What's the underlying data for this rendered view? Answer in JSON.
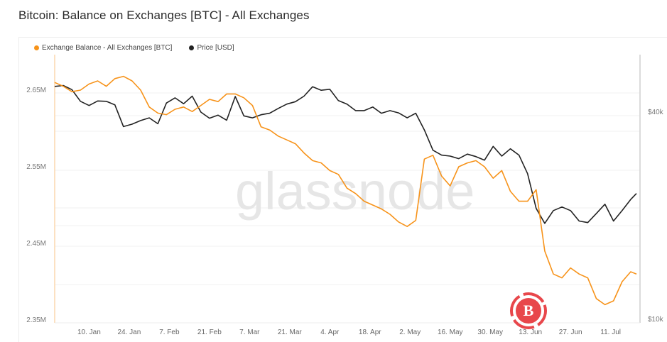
{
  "header": {
    "title": "Bitcoin: Balance on Exchanges [BTC] - All Exchanges"
  },
  "legend": [
    {
      "label": "Exchange Balance - All Exchanges [BTC]",
      "color": "#f7931a"
    },
    {
      "label": "Price [USD]",
      "color": "#222222"
    }
  ],
  "watermark": "glassnode",
  "colors": {
    "balance": "#f7931a",
    "price": "#222222",
    "grid": "#f0f0f0",
    "badge": "#e8474b"
  },
  "chart_data": {
    "type": "line",
    "title": "Bitcoin: Balance on Exchanges [BTC] - All Exchanges",
    "xlabel": "",
    "ylabel_left": "Exchange Balance [BTC]",
    "ylabel_right": "Price [USD]",
    "x_tick_labels": [
      "10. Jan",
      "24. Jan",
      "7. Feb",
      "21. Feb",
      "7. Mar",
      "21. Mar",
      "4. Apr",
      "18. Apr",
      "2. May",
      "16. May",
      "30. May",
      "13. Jun",
      "27. Jun",
      "11. Jul"
    ],
    "y_left_tick_labels": [
      "2.65M",
      "2.55M",
      "2.45M",
      "2.35M"
    ],
    "y_left_range": [
      2.35,
      2.68
    ],
    "y_right_tick_labels": [
      "$40k",
      "$10k"
    ],
    "y_right_scale": "log",
    "grid": true,
    "legend_position": "top-left",
    "x_range": [
      "2021-12-29",
      "2022-07-21"
    ],
    "series": [
      {
        "name": "Exchange Balance - All Exchanges [BTC]",
        "axis": "left",
        "color": "#f7931a",
        "x": [
          "2021-12-29",
          "2022-01-01",
          "2022-01-04",
          "2022-01-07",
          "2022-01-10",
          "2022-01-13",
          "2022-01-16",
          "2022-01-19",
          "2022-01-22",
          "2022-01-25",
          "2022-01-28",
          "2022-01-31",
          "2022-02-03",
          "2022-02-06",
          "2022-02-09",
          "2022-02-12",
          "2022-02-15",
          "2022-02-18",
          "2022-02-21",
          "2022-02-24",
          "2022-02-27",
          "2022-03-02",
          "2022-03-05",
          "2022-03-08",
          "2022-03-11",
          "2022-03-14",
          "2022-03-17",
          "2022-03-20",
          "2022-03-23",
          "2022-03-26",
          "2022-03-29",
          "2022-04-01",
          "2022-04-04",
          "2022-04-07",
          "2022-04-10",
          "2022-04-13",
          "2022-04-16",
          "2022-04-19",
          "2022-04-22",
          "2022-04-25",
          "2022-04-28",
          "2022-05-01",
          "2022-05-04",
          "2022-05-07",
          "2022-05-10",
          "2022-05-13",
          "2022-05-16",
          "2022-05-19",
          "2022-05-22",
          "2022-05-25",
          "2022-05-28",
          "2022-05-31",
          "2022-06-03",
          "2022-06-06",
          "2022-06-09",
          "2022-06-12",
          "2022-06-15",
          "2022-06-18",
          "2022-06-21",
          "2022-06-24",
          "2022-06-27",
          "2022-06-30",
          "2022-07-03",
          "2022-07-06",
          "2022-07-09",
          "2022-07-12",
          "2022-07-15",
          "2022-07-18",
          "2022-07-20"
        ],
        "values": [
          2.66,
          2.655,
          2.648,
          2.65,
          2.658,
          2.662,
          2.655,
          2.665,
          2.668,
          2.662,
          2.65,
          2.628,
          2.62,
          2.618,
          2.625,
          2.628,
          2.622,
          2.63,
          2.638,
          2.635,
          2.645,
          2.645,
          2.64,
          2.63,
          2.602,
          2.598,
          2.59,
          2.585,
          2.58,
          2.568,
          2.558,
          2.555,
          2.545,
          2.54,
          2.522,
          2.515,
          2.505,
          2.5,
          2.495,
          2.488,
          2.478,
          2.472,
          2.48,
          2.56,
          2.565,
          2.538,
          2.525,
          2.55,
          2.555,
          2.558,
          2.55,
          2.535,
          2.545,
          2.518,
          2.505,
          2.505,
          2.52,
          2.44,
          2.41,
          2.405,
          2.418,
          2.41,
          2.405,
          2.378,
          2.37,
          2.375,
          2.4,
          2.413,
          2.41
        ]
      },
      {
        "name": "Price [USD]",
        "axis": "right",
        "color": "#222222",
        "x": [
          "2021-12-29",
          "2022-01-01",
          "2022-01-04",
          "2022-01-07",
          "2022-01-10",
          "2022-01-13",
          "2022-01-16",
          "2022-01-19",
          "2022-01-22",
          "2022-01-25",
          "2022-01-28",
          "2022-01-31",
          "2022-02-03",
          "2022-02-06",
          "2022-02-09",
          "2022-02-12",
          "2022-02-15",
          "2022-02-18",
          "2022-02-21",
          "2022-02-24",
          "2022-02-27",
          "2022-03-02",
          "2022-03-05",
          "2022-03-08",
          "2022-03-11",
          "2022-03-14",
          "2022-03-17",
          "2022-03-20",
          "2022-03-23",
          "2022-03-26",
          "2022-03-29",
          "2022-04-01",
          "2022-04-04",
          "2022-04-07",
          "2022-04-10",
          "2022-04-13",
          "2022-04-16",
          "2022-04-19",
          "2022-04-22",
          "2022-04-25",
          "2022-04-28",
          "2022-05-01",
          "2022-05-04",
          "2022-05-07",
          "2022-05-10",
          "2022-05-13",
          "2022-05-16",
          "2022-05-19",
          "2022-05-22",
          "2022-05-25",
          "2022-05-28",
          "2022-05-31",
          "2022-06-03",
          "2022-06-06",
          "2022-06-09",
          "2022-06-12",
          "2022-06-15",
          "2022-06-18",
          "2022-06-21",
          "2022-06-24",
          "2022-06-27",
          "2022-06-30",
          "2022-07-03",
          "2022-07-06",
          "2022-07-09",
          "2022-07-12",
          "2022-07-15",
          "2022-07-18",
          "2022-07-20"
        ],
        "values": [
          47500,
          47800,
          46500,
          43000,
          41800,
          43100,
          43000,
          42000,
          36300,
          36900,
          37800,
          38500,
          37000,
          42500,
          44000,
          42300,
          44500,
          40000,
          38400,
          39200,
          37900,
          44400,
          39000,
          38500,
          39300,
          39700,
          41000,
          42200,
          42900,
          44500,
          47400,
          46300,
          46600,
          43200,
          42200,
          40400,
          40400,
          41400,
          39700,
          40400,
          39800,
          38500,
          39700,
          35500,
          31000,
          30000,
          29800,
          29300,
          30200,
          29700,
          29000,
          31800,
          29800,
          31300,
          30000,
          26500,
          21000,
          19000,
          20700,
          21200,
          20700,
          19300,
          19100,
          20300,
          21600,
          19300,
          20700,
          22300,
          23200
        ]
      }
    ]
  }
}
